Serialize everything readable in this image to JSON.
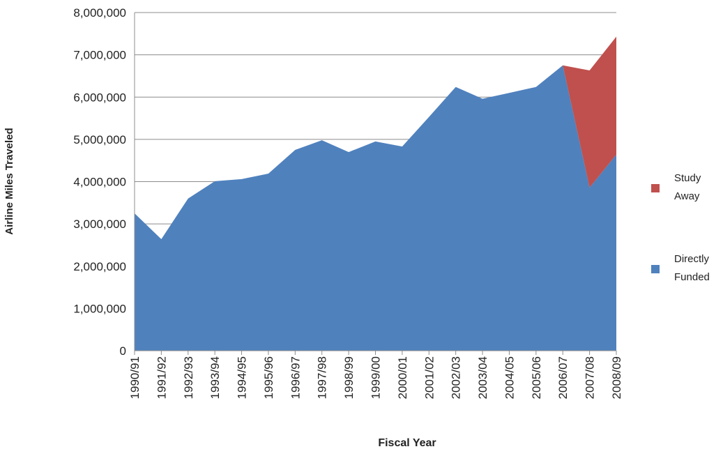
{
  "chart_data": {
    "type": "stacked_area",
    "y_label": "Airline Miles Traveled",
    "x_label": "Fiscal Year",
    "categories": [
      "1990/91",
      "1991/92",
      "1992/93",
      "1993/94",
      "1994/95",
      "1995/96",
      "1996/97",
      "1997/98",
      "1998/99",
      "1999/00",
      "2000/01",
      "2001/02",
      "2002/03",
      "2003/04",
      "2004/05",
      "2005/06",
      "2006/07",
      "2007/08",
      "2008/09"
    ],
    "series": [
      {
        "name": "Directly Funded",
        "color": "#4f81bd",
        "values": [
          3250000,
          2640000,
          3600000,
          4010000,
          4060000,
          4190000,
          4750000,
          4980000,
          4700000,
          4950000,
          4830000,
          5530000,
          6240000,
          5960000,
          6100000,
          6240000,
          6750000,
          3860000,
          4640000
        ]
      },
      {
        "name": "Study Away",
        "color": "#c0504d",
        "values": [
          0,
          0,
          0,
          0,
          0,
          0,
          0,
          0,
          0,
          0,
          0,
          0,
          0,
          0,
          0,
          0,
          0,
          2770000,
          2790000
        ]
      }
    ],
    "ylim": [
      0,
      8000000
    ],
    "yticks": [
      0,
      {
        "value": 1000000,
        "label": "1,000,000"
      },
      {
        "value": 2000000,
        "label": "2,000,000"
      },
      {
        "value": 3000000,
        "label": "3,000,000"
      },
      {
        "value": 4000000,
        "label": "4,000,000"
      },
      {
        "value": 5000000,
        "label": "5,000,000"
      },
      {
        "value": 6000000,
        "label": "6,000,000"
      },
      {
        "value": 7000000,
        "label": "7,000,000"
      },
      {
        "value": 8000000,
        "label": "8,000,000"
      }
    ],
    "grid": true,
    "legend": "right"
  }
}
